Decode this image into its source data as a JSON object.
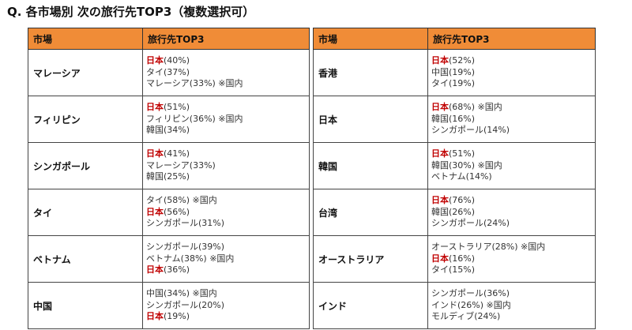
{
  "title": "Q. 各市場別 次の旅行先TOP3（複数選択可）",
  "header": {
    "market": "市場",
    "top3": "旅行先TOP3"
  },
  "accent_colors": {
    "header_bg": "#f08c37",
    "japan_text": "#c00000"
  },
  "left_table": [
    {
      "market": "マレーシア",
      "entries": [
        {
          "name": "日本",
          "pct": "(40%)",
          "home": true
        },
        {
          "name": "タイ",
          "pct": "(37%)",
          "home": false
        },
        {
          "name": "マレーシア",
          "pct": "(33%) ※国内",
          "home": false
        }
      ]
    },
    {
      "market": "フィリピン",
      "entries": [
        {
          "name": "日本",
          "pct": "(51%)",
          "home": true
        },
        {
          "name": "フィリピン",
          "pct": "(36%) ※国内",
          "home": false
        },
        {
          "name": "韓国",
          "pct": "(34%)",
          "home": false
        }
      ]
    },
    {
      "market": "シンガポール",
      "entries": [
        {
          "name": "日本",
          "pct": "(41%)",
          "home": true
        },
        {
          "name": "マレーシア",
          "pct": "(33%)",
          "home": false
        },
        {
          "name": "韓国",
          "pct": "(25%)",
          "home": false
        }
      ]
    },
    {
      "market": "タイ",
      "entries": [
        {
          "name": "タイ",
          "pct": "(58%) ※国内",
          "home": false
        },
        {
          "name": "日本",
          "pct": "(56%)",
          "home": true
        },
        {
          "name": "シンガポール",
          "pct": "(31%)",
          "home": false
        }
      ]
    },
    {
      "market": "ベトナム",
      "entries": [
        {
          "name": "シンガポール",
          "pct": "(39%)",
          "home": false
        },
        {
          "name": "ベトナム",
          "pct": "(38%) ※国内",
          "home": false
        },
        {
          "name": "日本",
          "pct": "(36%)",
          "home": true
        }
      ]
    },
    {
      "market": "中国",
      "entries": [
        {
          "name": "中国",
          "pct": "(34%) ※国内",
          "home": false
        },
        {
          "name": "シンガポール",
          "pct": "(20%)",
          "home": false
        },
        {
          "name": "日本",
          "pct": "(19%)",
          "home": true
        }
      ]
    }
  ],
  "right_table": [
    {
      "market": "香港",
      "entries": [
        {
          "name": "日本",
          "pct": "(52%)",
          "home": true
        },
        {
          "name": "中国",
          "pct": "(19%)",
          "home": false
        },
        {
          "name": "タイ",
          "pct": "(19%)",
          "home": false
        }
      ]
    },
    {
      "market": "日本",
      "entries": [
        {
          "name": "日本",
          "pct": "(68%) ※国内",
          "home": true
        },
        {
          "name": "韓国",
          "pct": "(16%)",
          "home": false
        },
        {
          "name": "シンガポール",
          "pct": "(14%)",
          "home": false
        }
      ]
    },
    {
      "market": "韓国",
      "entries": [
        {
          "name": "日本",
          "pct": "(51%)",
          "home": true
        },
        {
          "name": "韓国",
          "pct": "(30%) ※国内",
          "home": false
        },
        {
          "name": "ベトナム",
          "pct": "(14%)",
          "home": false
        }
      ]
    },
    {
      "market": "台湾",
      "entries": [
        {
          "name": "日本",
          "pct": "(76%)",
          "home": true
        },
        {
          "name": "韓国",
          "pct": "(26%)",
          "home": false
        },
        {
          "name": "シンガポール",
          "pct": "(24%)",
          "home": false
        }
      ]
    },
    {
      "market": "オーストラリア",
      "entries": [
        {
          "name": "オーストラリア",
          "pct": "(28%) ※国内",
          "home": false
        },
        {
          "name": "日本",
          "pct": "(16%)",
          "home": true
        },
        {
          "name": "タイ",
          "pct": "(15%)",
          "home": false
        }
      ]
    },
    {
      "market": "インド",
      "entries": [
        {
          "name": "シンガポール",
          "pct": "(36%)",
          "home": false
        },
        {
          "name": "インド",
          "pct": "(26%) ※国内",
          "home": false
        },
        {
          "name": "モルディブ",
          "pct": "(24%)",
          "home": false
        }
      ]
    }
  ]
}
